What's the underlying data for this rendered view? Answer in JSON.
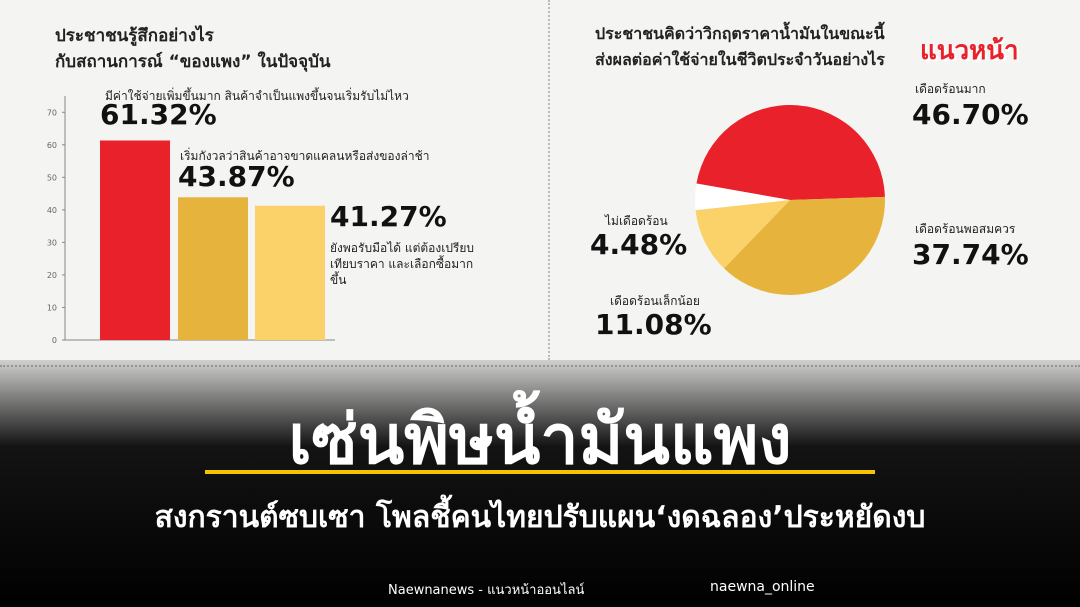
{
  "chart_data": [
    {
      "type": "bar",
      "title": [
        "ประชาชนรู้สึกอย่างไร",
        "กับสถานการณ์ “ของแพง” ในปัจจุบัน"
      ],
      "categories": [
        "มีค่าใช้จ่ายเพิ่มขึ้นมาก สินค้าจำเป็นแพงขึ้นจนเริ่มรับไม่ไหว",
        "เริ่มกังวลว่าสินค้าอาจขาดแคลนหรือส่งของล่าช้า",
        "ยังพอรับมือได้ แต่ต้องเปรียบเทียบราคา และเลือกซื้อมากขึ้น"
      ],
      "values": [
        61.32,
        43.87,
        41.27
      ],
      "value_labels": [
        "61.32%",
        "43.87%",
        "41.27%"
      ],
      "colors": [
        "#e8212b",
        "#e6b43c",
        "#fbd26a"
      ],
      "ylim": [
        0,
        75
      ],
      "yticks": [
        0,
        10,
        20,
        30,
        40,
        50,
        60,
        70
      ]
    },
    {
      "type": "pie",
      "title": [
        "ประชาชนคิดว่าวิกฤตราคาน้ำมันในขณะนี้",
        "ส่งผลต่อค่าใช้จ่ายในชีวิตประจำวันอย่างไร"
      ],
      "categories": [
        "เดือดร้อนมาก",
        "เดือดร้อนพอสมควร",
        "เดือดร้อนเล็กน้อย",
        "ไม่เดือดร้อน"
      ],
      "values": [
        46.7,
        37.74,
        11.08,
        4.48
      ],
      "value_labels": [
        "46.70%",
        "37.74%",
        "11.08%",
        "4.48%"
      ],
      "colors": [
        "#e8212b",
        "#e6b43c",
        "#fbd26a",
        "#ffffff"
      ]
    }
  ],
  "watermark": "แนวหน้า",
  "headline": "เซ่นพิษน้ำมันแพง",
  "subheadline": "สงกรานต์ซบเซา โพลชี้คนไทยปรับแผน‘งดฉลอง’ประหยัดงบ",
  "footer": {
    "site": "Naewnanews - แนวหน้าออนไลน์",
    "handle": "naewna_online"
  }
}
